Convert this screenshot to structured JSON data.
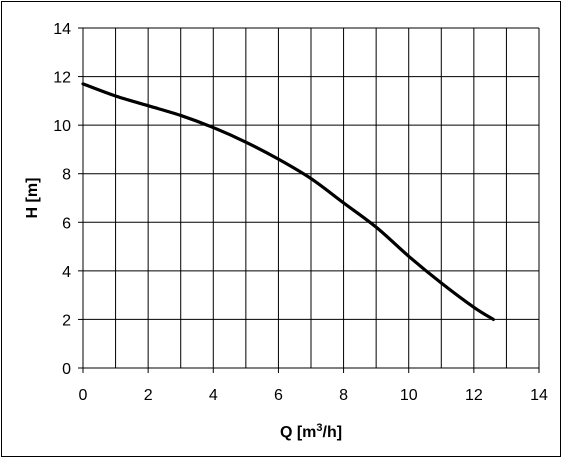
{
  "chart_data": {
    "type": "line",
    "title": "",
    "xlabel": "Q [m",
    "xlabel_sup": "3",
    "xlabel_tail": "/h]",
    "ylabel": "H [m]",
    "xlim": [
      0,
      14
    ],
    "ylim": [
      0,
      14
    ],
    "xticks": [
      0,
      2,
      4,
      6,
      8,
      10,
      12,
      14
    ],
    "yticks": [
      0,
      2,
      4,
      6,
      8,
      10,
      12,
      14
    ],
    "x_minor_step": 1,
    "grid": true,
    "colors": {
      "line": "#000000",
      "grid": "#000000",
      "background": "#ffffff"
    },
    "series": [
      {
        "x": [
          0,
          1,
          2,
          3,
          4,
          5,
          6,
          7,
          8,
          9,
          10,
          11,
          12,
          12.6
        ],
        "y": [
          11.7,
          11.2,
          10.8,
          10.4,
          9.9,
          9.3,
          8.6,
          7.8,
          6.8,
          5.8,
          4.6,
          3.5,
          2.5,
          2.0
        ]
      }
    ]
  }
}
